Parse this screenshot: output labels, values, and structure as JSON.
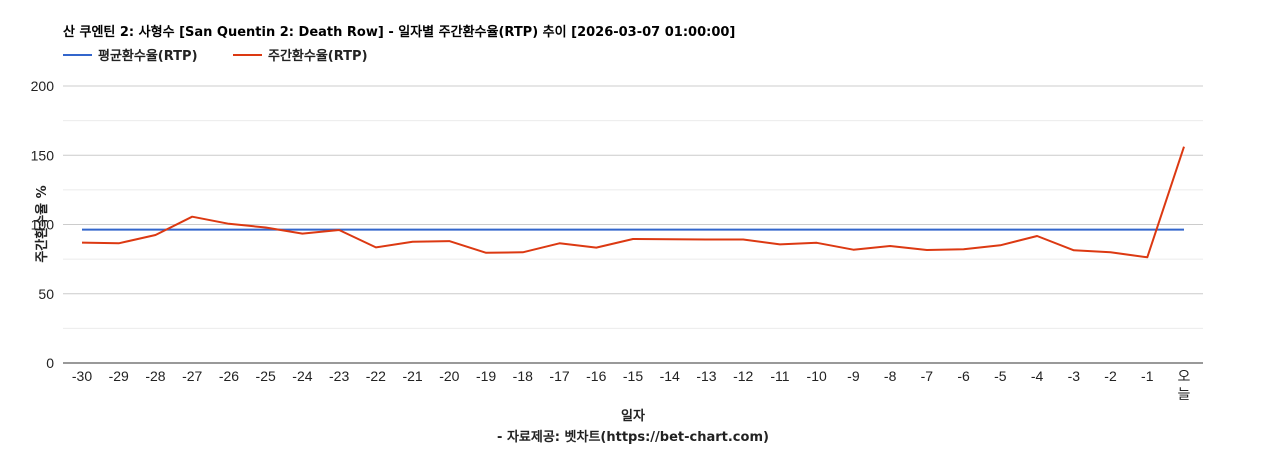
{
  "chart_data": {
    "type": "line",
    "title": "산 쿠엔틴 2: 사형수 [San Quentin 2: Death Row] - 일자별 주간환수율(RTP) 추이 [2026-03-07 01:00:00]",
    "xlabel": "일자",
    "ylabel": "주간환수율 %",
    "source": "- 자료제공: 벳차트(https://bet-chart.com)",
    "ylim": [
      0,
      200
    ],
    "yticks": [
      0,
      50,
      100,
      150,
      200
    ],
    "grid": true,
    "legend_position": "top-left",
    "categories": [
      "-30",
      "-29",
      "-28",
      "-27",
      "-26",
      "-25",
      "-24",
      "-23",
      "-22",
      "-21",
      "-20",
      "-19",
      "-18",
      "-17",
      "-16",
      "-15",
      "-14",
      "-13",
      "-12",
      "-11",
      "-10",
      "-9",
      "-8",
      "-7",
      "-6",
      "-5",
      "-4",
      "-3",
      "-2",
      "-1",
      "오늘"
    ],
    "series": [
      {
        "name": "평균환수율(RTP)",
        "color": "#3366cc",
        "values": [
          96.3,
          96.3,
          96.3,
          96.3,
          96.3,
          96.3,
          96.3,
          96.3,
          96.3,
          96.3,
          96.3,
          96.3,
          96.3,
          96.3,
          96.3,
          96.3,
          96.3,
          96.3,
          96.3,
          96.3,
          96.3,
          96.3,
          96.3,
          96.3,
          96.3,
          96.3,
          96.3,
          96.3,
          96.3,
          96.3,
          96.3
        ]
      },
      {
        "name": "주간환수율(RTP)",
        "color": "#dc3912",
        "values": [
          86.9,
          86.4,
          92.4,
          105.6,
          100.5,
          97.8,
          93.4,
          96.0,
          83.5,
          87.6,
          88.0,
          79.6,
          79.9,
          86.4,
          83.3,
          89.5,
          89.3,
          89.2,
          89.2,
          85.6,
          86.8,
          81.8,
          84.5,
          81.6,
          82.1,
          85.0,
          91.7,
          81.4,
          79.9,
          76.3,
          156.2
        ]
      }
    ]
  },
  "header": {
    "title": "산 쿠엔틴 2: 사형수 [San Quentin 2: Death Row] - 일자별 주간환수율(RTP) 추이 [2026-03-07 01:00:00]"
  },
  "legend": [
    {
      "label": "평균환수율(RTP)",
      "color": "#3366cc"
    },
    {
      "label": "주간환수율(RTP)",
      "color": "#dc3912"
    }
  ],
  "axes": {
    "x_title": "일자",
    "y_title": "주간환수율 %",
    "today_label_lines": [
      "오",
      "늘"
    ]
  },
  "footer": {
    "source": "- 자료제공: 벳차트(https://bet-chart.com)"
  }
}
